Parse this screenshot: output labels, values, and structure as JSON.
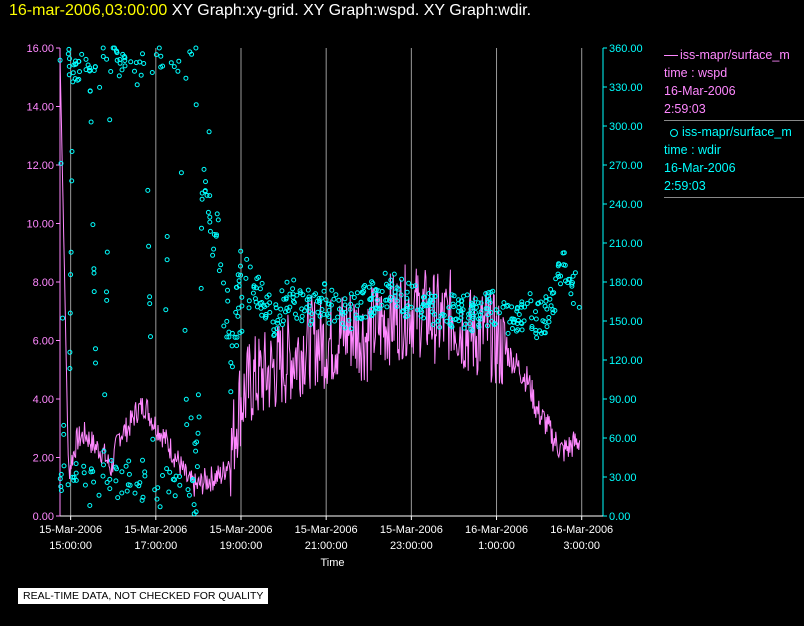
{
  "header": {
    "timestamp": "16-mar-2006,03:00:00",
    "graphs": "XY Graph:xy-grid.  XY Graph:wspd.  XY Graph:wdir."
  },
  "colors": {
    "wspd": "#ff88ff",
    "wdir": "#00ffff",
    "grid": "#9a9a9a",
    "title": "#ffff00"
  },
  "legend": [
    {
      "line1": "iss-mapr/surface_m",
      "line2": "time : wspd",
      "line3": "16-Mar-2006",
      "line4": "2:59:03"
    },
    {
      "line1": "iss-mapr/surface_m",
      "line2": "time : wdir",
      "line3": "16-Mar-2006",
      "line4": "2:59:03"
    }
  ],
  "notice": "REAL-TIME DATA, NOT CHECKED FOR QUALITY",
  "chart_data": {
    "type": "line",
    "xlabel": "Time",
    "x_range": [
      "15-Mar-2006 14:45",
      "16-Mar-2006 03:00"
    ],
    "x_ticks": [
      {
        "date": "15-Mar-2006",
        "time": "15:00:00",
        "hour": 0.25
      },
      {
        "date": "15-Mar-2006",
        "time": "17:00:00",
        "hour": 2.25
      },
      {
        "date": "15-Mar-2006",
        "time": "19:00:00",
        "hour": 4.25
      },
      {
        "date": "15-Mar-2006",
        "time": "21:00:00",
        "hour": 6.25
      },
      {
        "date": "15-Mar-2006",
        "time": "23:00:00",
        "hour": 8.25
      },
      {
        "date": "16-Mar-2006",
        "time": "1:00:00",
        "hour": 10.25
      },
      {
        "date": "16-Mar-2006",
        "time": "3:00:00",
        "hour": 12.25
      }
    ],
    "y_left": {
      "label": "wspd",
      "range": [
        0,
        16
      ],
      "ticks": [
        "0.00",
        "2.00",
        "4.00",
        "6.00",
        "8.00",
        "10.00",
        "12.00",
        "14.00",
        "16.00"
      ]
    },
    "y_right": {
      "label": "wdir",
      "range": [
        0,
        360
      ],
      "ticks": [
        "0.00",
        "30.00",
        "60.00",
        "90.00",
        "120.00",
        "150.00",
        "180.00",
        "210.00",
        "240.00",
        "270.00",
        "300.00",
        "330.00",
        "360.00"
      ]
    },
    "grid": "vertical",
    "series": [
      {
        "name": "wspd",
        "style": "line",
        "axis": "left",
        "hours": [
          0,
          0.2,
          0.4,
          0.6,
          0.8,
          1.0,
          1.2,
          1.4,
          1.6,
          1.8,
          2.0,
          2.2,
          2.4,
          2.6,
          2.8,
          3.0,
          3.2,
          3.4,
          3.6,
          3.8,
          4.0,
          4.2,
          4.5,
          4.8,
          5.0,
          5.2,
          5.4,
          5.6,
          5.8,
          6.0,
          6.2,
          6.4,
          6.6,
          6.8,
          7.0,
          7.2,
          7.4,
          7.6,
          7.8,
          8.0,
          8.2,
          8.4,
          8.6,
          8.8,
          9.0,
          9.2,
          9.4,
          9.6,
          9.8,
          10.0,
          10.2,
          10.4,
          10.6,
          10.8,
          11.0,
          11.2,
          11.4,
          11.6,
          11.8,
          12.0,
          12.2
        ],
        "values": [
          15.8,
          1.5,
          2.6,
          2.8,
          2.4,
          2.2,
          1.6,
          2.8,
          3.0,
          3.6,
          3.8,
          3.2,
          2.8,
          2.3,
          1.8,
          1.2,
          1.0,
          1.2,
          1.3,
          1.4,
          2.0,
          3.8,
          4.6,
          4.8,
          5.0,
          5.2,
          5.4,
          5.6,
          5.9,
          6.0,
          5.9,
          6.0,
          6.2,
          6.4,
          6.3,
          6.1,
          6.5,
          6.6,
          6.8,
          6.9,
          7.1,
          7.0,
          6.9,
          6.8,
          6.6,
          6.9,
          6.5,
          6.3,
          6.2,
          6.4,
          6.0,
          5.7,
          5.4,
          5.0,
          4.6,
          3.6,
          3.2,
          2.6,
          2.2,
          2.4,
          2.6
        ]
      },
      {
        "name": "wdir",
        "style": "scatter",
        "axis": "right",
        "hours": [
          0,
          0.1,
          0.2,
          0.3,
          0.5,
          0.7,
          0.9,
          1.0,
          1.2,
          1.4,
          1.6,
          1.8,
          2.0,
          2.2,
          2.4,
          2.6,
          2.8,
          3.0,
          3.2,
          3.4,
          3.6,
          3.8,
          4.0,
          4.2,
          4.4,
          4.6,
          4.8,
          5.0,
          5.4,
          5.8,
          6.2,
          6.6,
          7.0,
          7.4,
          7.8,
          8.2,
          8.6,
          9.0,
          9.4,
          9.8,
          10.2,
          10.6,
          11.0,
          11.2,
          11.4,
          11.6,
          11.8,
          12.0,
          12.2
        ],
        "values": [
          355,
          20,
          15,
          340,
          345,
          350,
          15,
          5,
          355,
          348,
          345,
          340,
          350,
          20,
          15,
          345,
          350,
          40,
          30,
          290,
          230,
          190,
          130,
          170,
          160,
          175,
          165,
          150,
          170,
          160,
          165,
          155,
          160,
          170,
          175,
          165,
          160,
          155,
          158,
          155,
          160,
          150,
          160,
          150,
          155,
          165,
          200,
          180,
          170
        ]
      }
    ]
  }
}
